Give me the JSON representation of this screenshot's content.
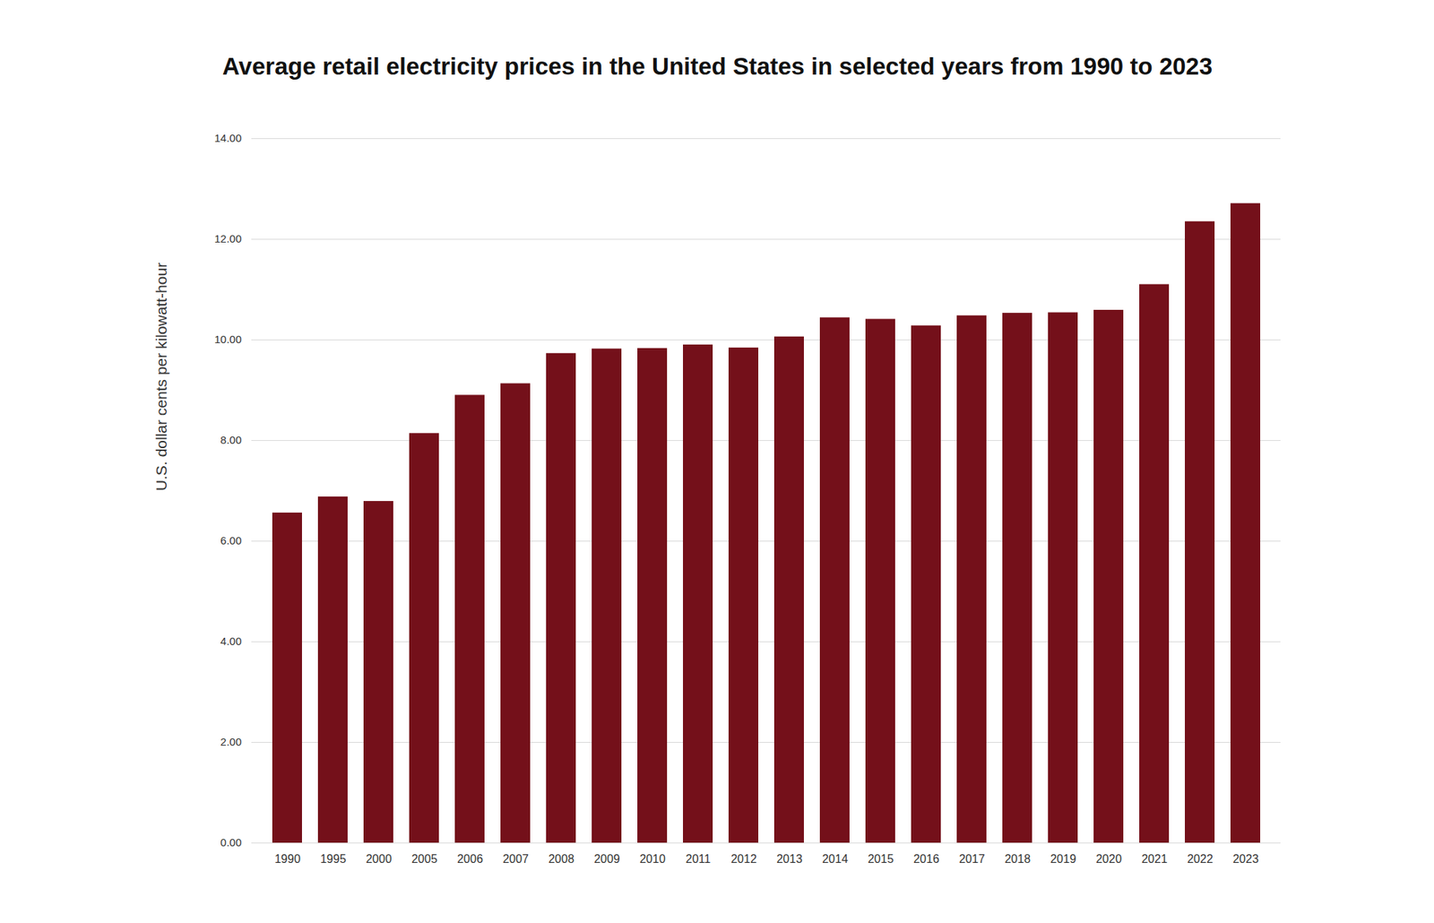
{
  "chart_data": {
    "type": "bar",
    "title": "Average retail electricity prices in the United States in selected years from 1990 to 2023",
    "y_label": "U.S. dollar cents per kilowatt-hour",
    "categories": [
      "1990",
      "1995",
      "2000",
      "2005",
      "2006",
      "2007",
      "2008",
      "2009",
      "2010",
      "2011",
      "2012",
      "2013",
      "2014",
      "2015",
      "2016",
      "2017",
      "2018",
      "2019",
      "2020",
      "2021",
      "2022",
      "2023"
    ],
    "values": [
      6.56,
      6.88,
      6.79,
      8.14,
      8.9,
      9.13,
      9.73,
      9.82,
      9.83,
      9.9,
      9.84,
      10.06,
      10.44,
      10.41,
      10.28,
      10.48,
      10.53,
      10.54,
      10.59,
      11.1,
      12.35,
      12.71
    ],
    "color": "#74101a",
    "ylim": [
      0,
      14
    ],
    "yticks": [
      {
        "value": 0,
        "label": "0.00"
      },
      {
        "value": 2,
        "label": "2.00"
      },
      {
        "value": 4,
        "label": "4.00"
      },
      {
        "value": 6,
        "label": "6.00"
      },
      {
        "value": 8,
        "label": "8.00"
      },
      {
        "value": 10,
        "label": "10.00"
      },
      {
        "value": 12,
        "label": "12.00"
      },
      {
        "value": 14,
        "label": "14.00"
      }
    ],
    "grid": true
  }
}
